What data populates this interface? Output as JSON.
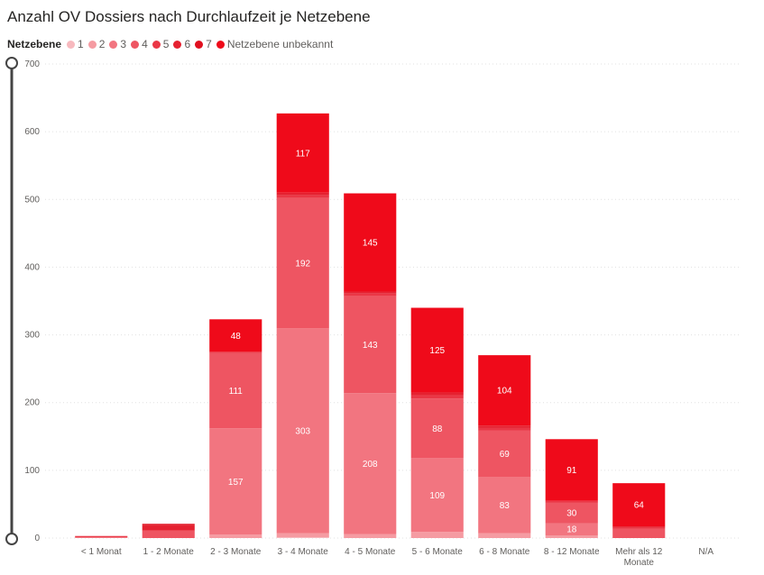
{
  "chart_data": {
    "type": "bar",
    "stacked": true,
    "title": "Anzahl OV Dossiers nach Durchlaufzeit je Netzebene",
    "legend_title": "Netzebene",
    "legend_position": "top-left",
    "grid": true,
    "ylim": [
      0,
      700
    ],
    "yticks": [
      0,
      100,
      200,
      300,
      400,
      500,
      600,
      700
    ],
    "categories": [
      "< 1 Monat",
      "1 - 2 Monate",
      "2 - 3 Monate",
      "3 - 4 Monate",
      "4 - 5 Monate",
      "5 - 6 Monate",
      "6 - 8 Monate",
      "8 - 12 Monate",
      "Mehr als 12 Monate",
      "N/A"
    ],
    "category_lines": [
      [
        "< 1 Monat"
      ],
      [
        "1 - 2 Monate"
      ],
      [
        "2 - 3 Monate"
      ],
      [
        "3 - 4 Monate"
      ],
      [
        "4 - 5 Monate"
      ],
      [
        "5 - 6 Monate"
      ],
      [
        "6 - 8 Monate"
      ],
      [
        "8 - 12 Monate"
      ],
      [
        "Mehr als 12",
        "Monate"
      ],
      [
        "N/A"
      ]
    ],
    "series": [
      {
        "name": "1",
        "color": "#f7b9be",
        "values": [
          0,
          0,
          0,
          1,
          0,
          0,
          0,
          0,
          0,
          0
        ]
      },
      {
        "name": "2",
        "color": "#f59ba2",
        "values": [
          0,
          0,
          5,
          6,
          6,
          9,
          7,
          4,
          0,
          0
        ]
      },
      {
        "name": "3",
        "color": "#f27580",
        "values": [
          1,
          0,
          157,
          303,
          208,
          109,
          83,
          18,
          0,
          0
        ]
      },
      {
        "name": "4",
        "color": "#ee5562",
        "values": [
          1,
          11,
          111,
          192,
          143,
          88,
          69,
          30,
          14,
          0
        ]
      },
      {
        "name": "5",
        "color": "#ea3746",
        "values": [
          0,
          0,
          2,
          4,
          4,
          5,
          4,
          3,
          2,
          0
        ]
      },
      {
        "name": "6",
        "color": "#e52130",
        "values": [
          1,
          8,
          0,
          4,
          3,
          4,
          3,
          0,
          0,
          0
        ]
      },
      {
        "name": "7",
        "color": "#e0101f",
        "values": [
          0,
          2,
          0,
          0,
          0,
          0,
          0,
          0,
          1,
          0
        ]
      },
      {
        "name": "Netzebene unbekannt",
        "color": "#ef0a1a",
        "values": [
          0,
          0,
          48,
          117,
          145,
          125,
          104,
          91,
          64,
          0
        ]
      }
    ]
  }
}
